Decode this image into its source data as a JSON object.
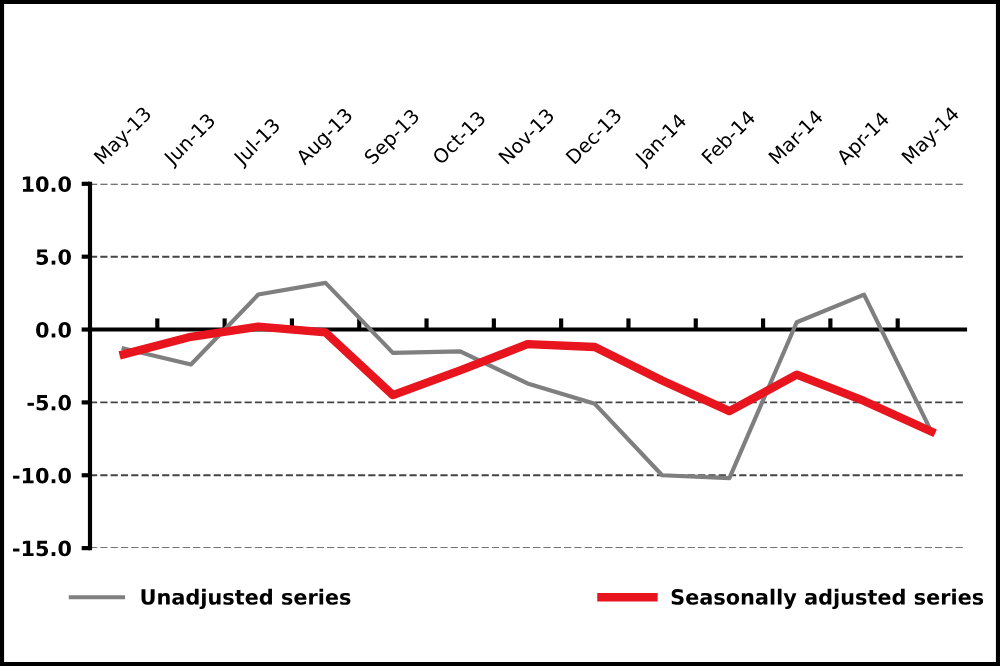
{
  "chart_data": {
    "type": "line",
    "categories": [
      "May-13",
      "Jun-13",
      "Jul-13",
      "Aug-13",
      "Sep-13",
      "Oct-13",
      "Nov-13",
      "Dec-13",
      "Jan-14",
      "Feb-14",
      "Mar-14",
      "Apr-14",
      "May-14"
    ],
    "series": [
      {
        "name": "Unadjusted series",
        "color": "#7f7f7f",
        "values": [
          -1.3,
          -2.4,
          2.4,
          3.2,
          -1.6,
          -1.5,
          -3.7,
          -5.1,
          -10.0,
          -10.2,
          0.5,
          2.4,
          -7.0
        ]
      },
      {
        "name": "Seasonally adjusted series",
        "color": "#e8141e",
        "values": [
          -1.7,
          -0.5,
          0.2,
          -0.2,
          -4.5,
          -2.8,
          -1.0,
          -1.2,
          -3.5,
          -5.6,
          -3.1,
          -4.9,
          -7.0
        ]
      }
    ],
    "ylim": [
      -15,
      10
    ],
    "yticks": [
      {
        "value": -15,
        "label": "-15.0"
      },
      {
        "value": -10,
        "label": "-10.0"
      },
      {
        "value": -5,
        "label": "-5.0"
      },
      {
        "value": 0,
        "label": "0.0"
      },
      {
        "value": 5,
        "label": "5.0"
      },
      {
        "value": 10,
        "label": "10.0"
      }
    ],
    "grid": "y",
    "legend": "bottom",
    "marker": "none",
    "line_style": "solid"
  }
}
